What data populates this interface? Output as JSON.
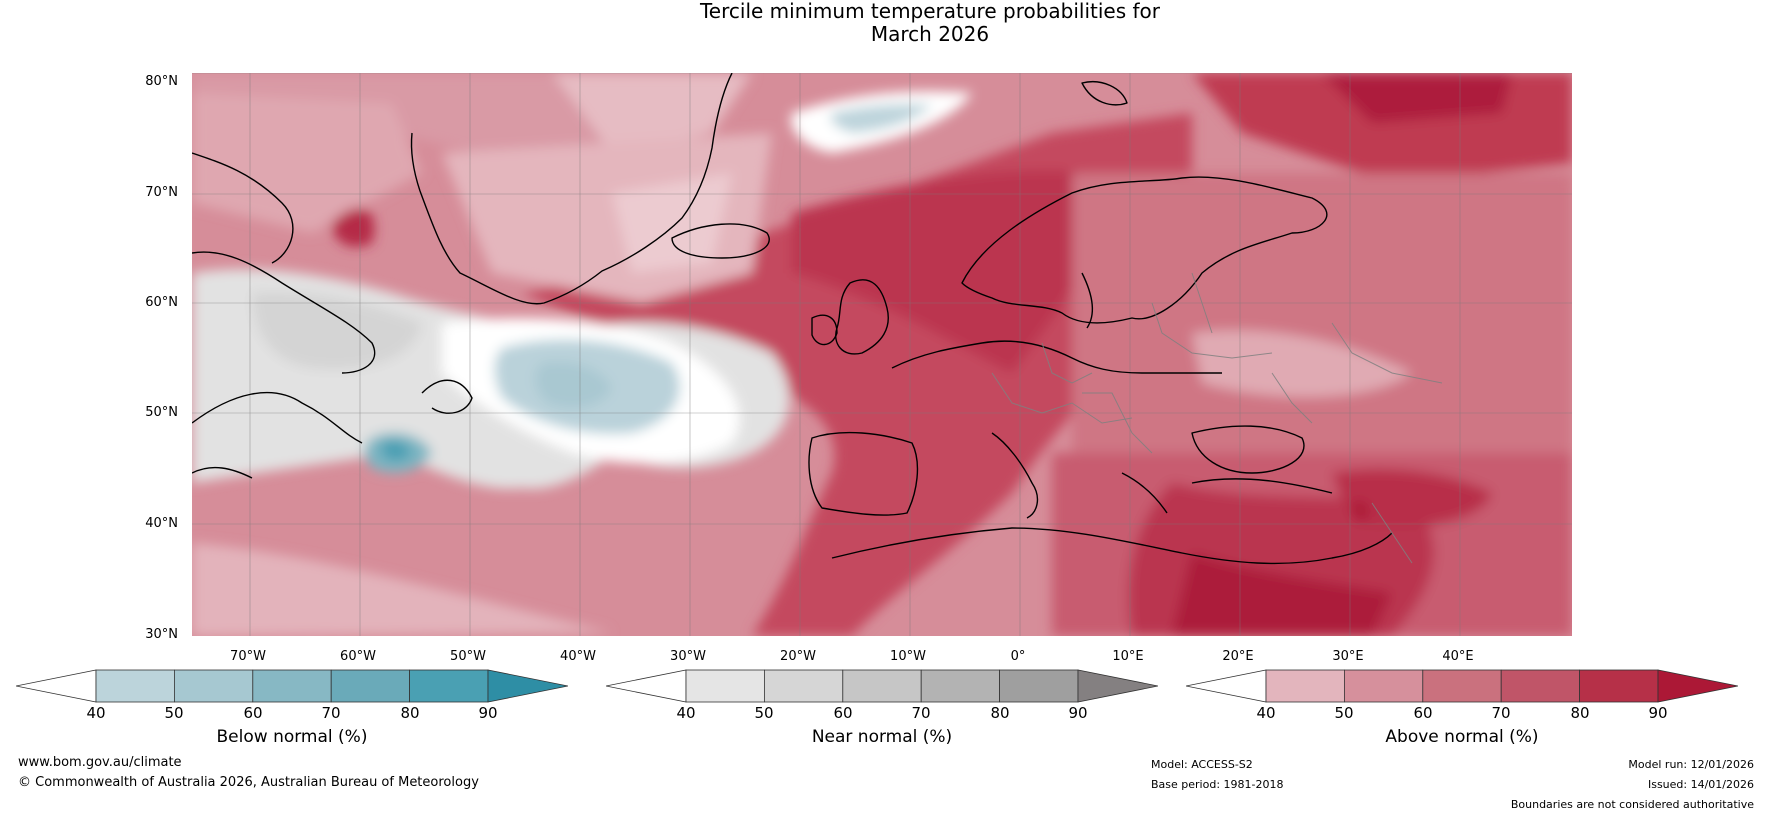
{
  "title": {
    "line1": "Tercile minimum temperature probabilities for",
    "line2": "March 2026"
  },
  "map": {
    "latitude_labels": [
      "80°N",
      "70°N",
      "60°N",
      "50°N",
      "40°N",
      "30°N"
    ],
    "longitude_labels": [
      "70°W",
      "60°W",
      "50°W",
      "40°W",
      "30°W",
      "20°W",
      "10°W",
      "0°",
      "10°E",
      "20°E",
      "30°E",
      "40°E"
    ],
    "region_description_colors": {
      "above": "#c03c52",
      "near": "#e3e3e3",
      "below": "#b9d3da"
    }
  },
  "colorbars": [
    {
      "label": "Below normal (%)",
      "ticks": [
        "40",
        "50",
        "60",
        "70",
        "80",
        "90"
      ],
      "colors": [
        "#ffffff",
        "#bcd4db",
        "#a6c8d1",
        "#87b8c4",
        "#6aaab9",
        "#4aa0b3",
        "#2e8ea5"
      ]
    },
    {
      "label": "Near normal (%)",
      "ticks": [
        "40",
        "50",
        "60",
        "70",
        "80",
        "90"
      ],
      "colors": [
        "#ffffff",
        "#e5e5e5",
        "#d6d6d6",
        "#c6c6c6",
        "#b3b3b3",
        "#9f9f9f",
        "#848081"
      ]
    },
    {
      "label": "Above normal (%)",
      "ticks": [
        "40",
        "50",
        "60",
        "70",
        "80",
        "90"
      ],
      "colors": [
        "#ffffff",
        "#e3b5bd",
        "#d6909c",
        "#ca717e",
        "#c05568",
        "#b63048",
        "#ac1836"
      ]
    }
  ],
  "footer": {
    "website": "www.bom.gov.au/climate",
    "copyright": "© Commonwealth of Australia 2026, Australian Bureau of Meteorology",
    "model": "Model: ACCESS-S2",
    "base_period": "Base period: 1981-2018",
    "model_run": "Model run: 12/01/2026",
    "issued": "Issued: 14/01/2026",
    "disclaimer": "Boundaries are not considered authoritative"
  }
}
